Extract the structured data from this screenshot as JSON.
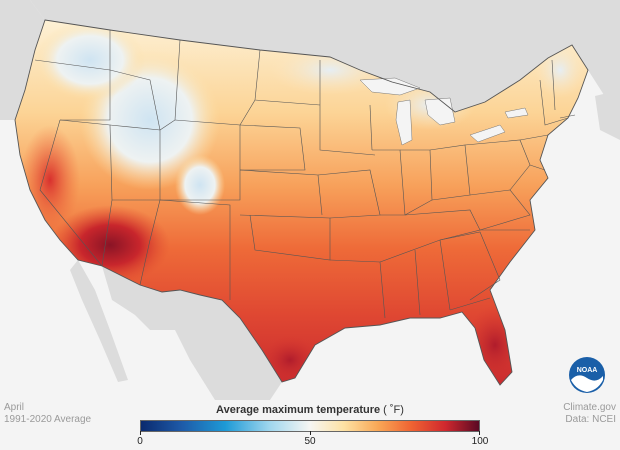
{
  "title": "Average maximum temperature",
  "unit": "( ˚F)",
  "period": {
    "month": "April",
    "range": "1991-2020 Average"
  },
  "source": {
    "site": "Climate.gov",
    "data": "Data: NCEI"
  },
  "logo_text": "NOAA",
  "legend": {
    "min": 0,
    "max": 100,
    "ticks": [
      {
        "value": 0,
        "label": "0"
      },
      {
        "value": 50,
        "label": "50"
      },
      {
        "value": 100,
        "label": "100"
      }
    ],
    "stops": [
      {
        "value": 0,
        "color": "#0b2a6e"
      },
      {
        "value": 12,
        "color": "#1e5aa8"
      },
      {
        "value": 25,
        "color": "#1e9ad6"
      },
      {
        "value": 38,
        "color": "#9fd6ee"
      },
      {
        "value": 50,
        "color": "#f6f6f3"
      },
      {
        "value": 60,
        "color": "#fde2a4"
      },
      {
        "value": 70,
        "color": "#f9a857"
      },
      {
        "value": 80,
        "color": "#ef6332"
      },
      {
        "value": 90,
        "color": "#d0282e"
      },
      {
        "value": 100,
        "color": "#5a0a24"
      }
    ]
  },
  "colors": {
    "background": "#f4f4f4",
    "land_outside": "#dcdcdc",
    "ocean": "#f4f4f4",
    "state_border": "#555555",
    "noaa_blue": "#1a5fa8"
  }
}
